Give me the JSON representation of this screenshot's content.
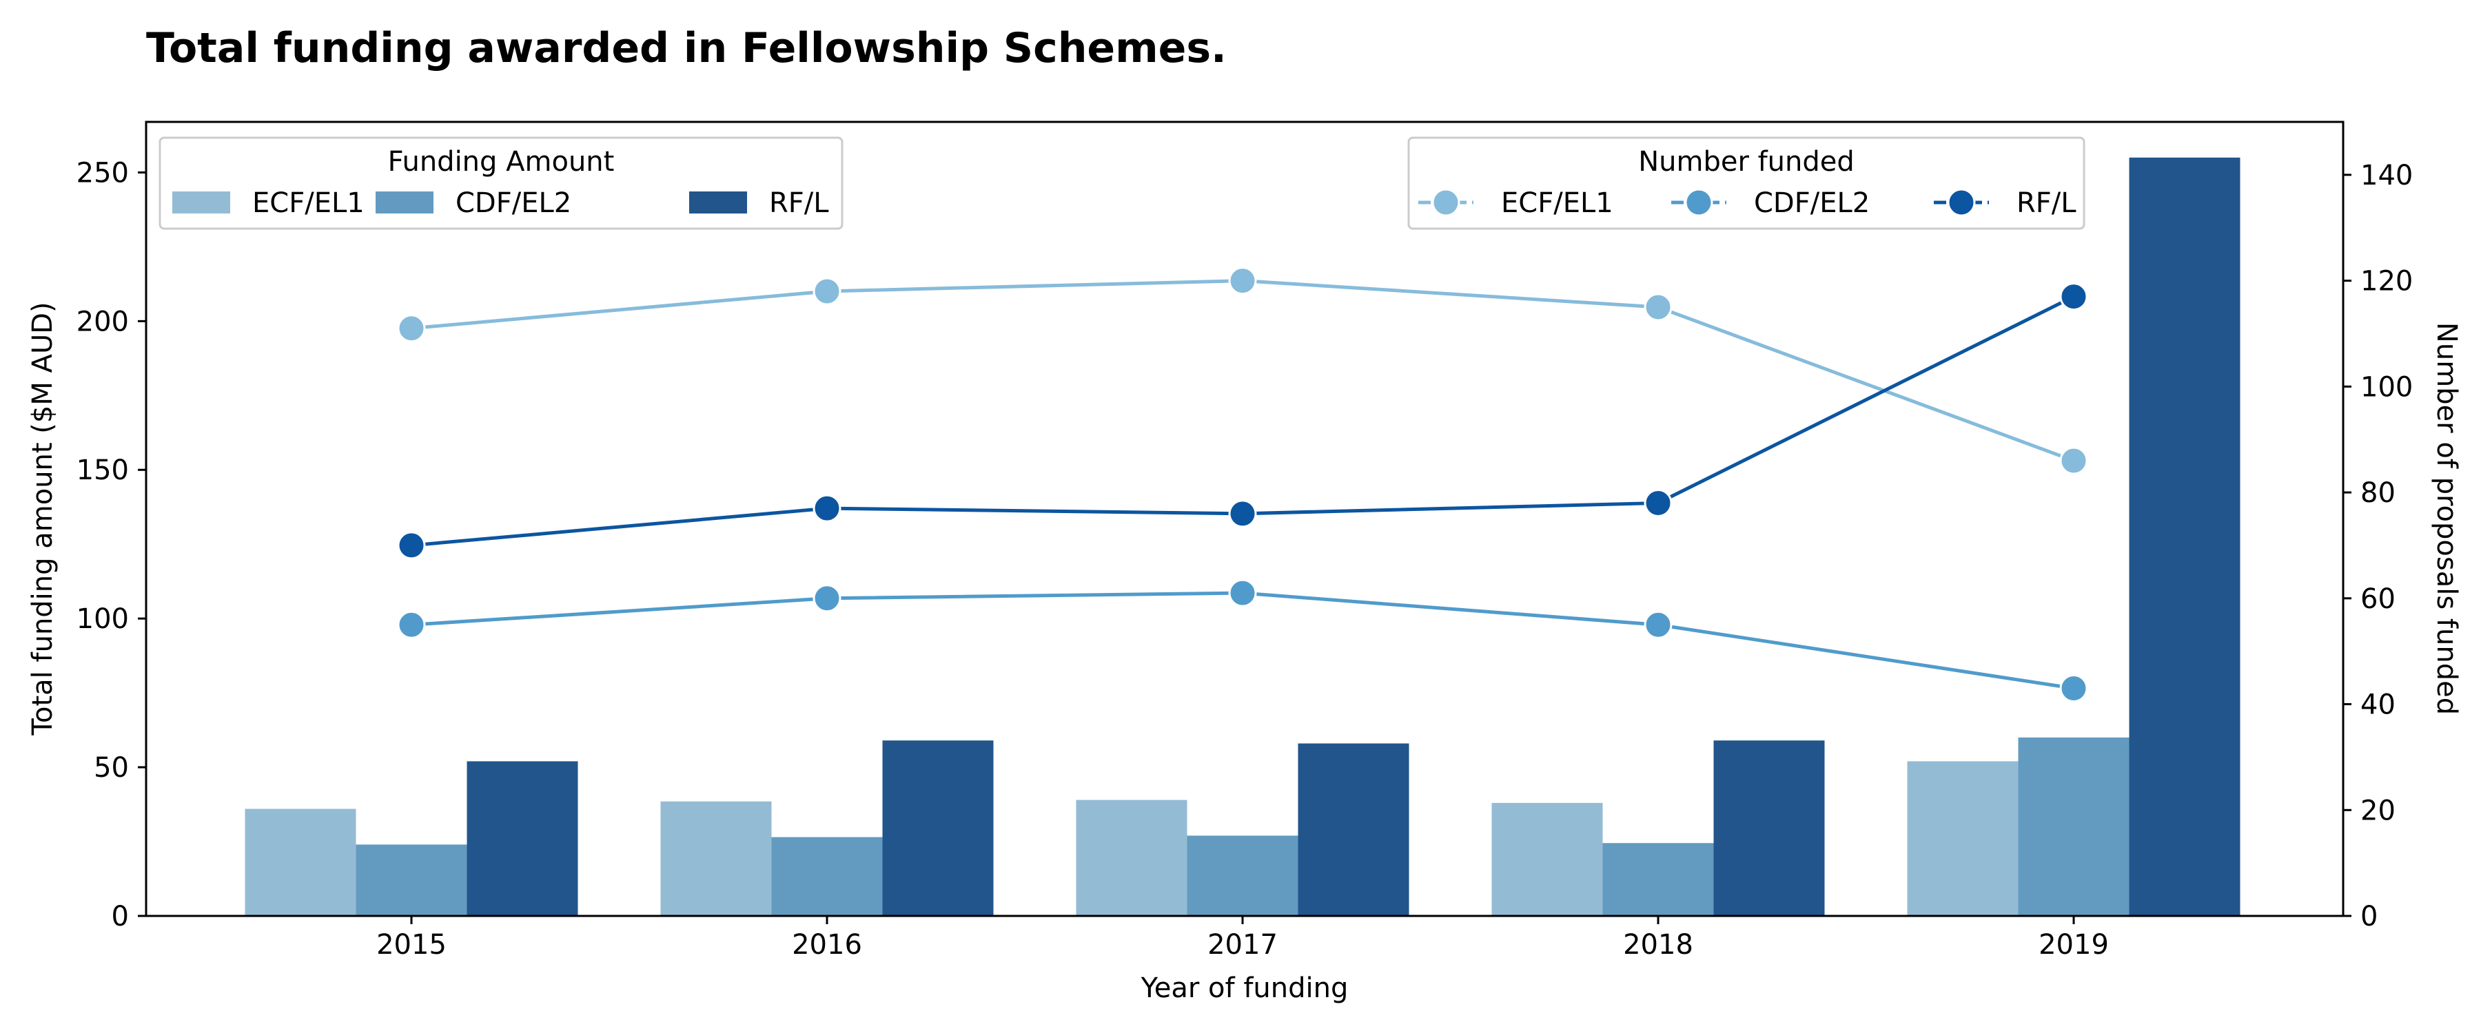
{
  "chart_data": {
    "type": "bar",
    "combo": "bar + line (dual axis)",
    "title": "Total funding awarded  in Fellowship Schemes.",
    "xlabel": "Year of funding",
    "ylabel": "Total funding amount ($M AUD)",
    "y2label": "Number of proposals funded",
    "categories": [
      "2015",
      "2016",
      "2017",
      "2018",
      "2019"
    ],
    "ylim": [
      0,
      267
    ],
    "y2lim": [
      0,
      150
    ],
    "yticks": [
      0,
      50,
      100,
      150,
      200,
      250
    ],
    "y2ticks": [
      0,
      20,
      40,
      60,
      80,
      100,
      120,
      140
    ],
    "grid": false,
    "bar_legend_title": "Funding Amount",
    "line_legend_title": "Number funded",
    "bar_legend_position": "top-left",
    "line_legend_position": "top-right",
    "bar_series": [
      {
        "name": "ECF/EL1",
        "color": "#94bbd4",
        "values": [
          36,
          38.5,
          39,
          38,
          52
        ]
      },
      {
        "name": "CDF/EL2",
        "color": "#639bc0",
        "values": [
          24,
          26.5,
          27,
          24.5,
          60
        ]
      },
      {
        "name": "RF/L",
        "color": "#21558c",
        "values": [
          52,
          59,
          58,
          59,
          255
        ]
      }
    ],
    "line_series": [
      {
        "name": "ECF/EL1",
        "color": "#86bbdb",
        "values": [
          111,
          118,
          120,
          115,
          86
        ]
      },
      {
        "name": "CDF/EL2",
        "color": "#509bcb",
        "values": [
          55,
          60,
          61,
          55,
          43
        ]
      },
      {
        "name": "RF/L",
        "color": "#0c55a0",
        "values": [
          70,
          77,
          76,
          78,
          117
        ]
      }
    ]
  }
}
